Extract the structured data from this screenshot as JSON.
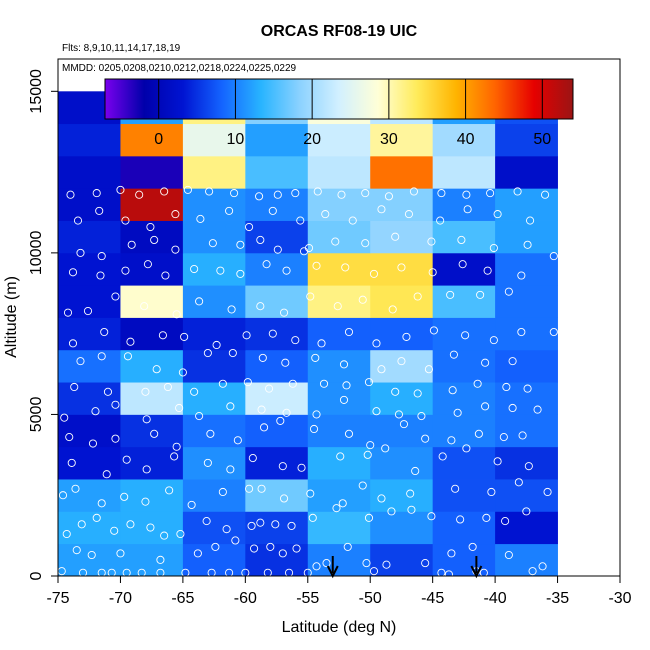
{
  "chart_data": {
    "type": "heatmap",
    "title": "ORCAS RF08-19 UIC",
    "subtitle_flights": "Flts: 8,9,10,11,14,17,18,19",
    "subtitle_dates": "MMDD: 0205,0208,0210,0212,0218,0224,0225,0229",
    "xlabel": "Latitude (deg N)",
    "ylabel": "Altitude (m)",
    "xlim": [
      -75,
      -30
    ],
    "ylim": [
      0,
      16000
    ],
    "x_ticks": [
      -75,
      -70,
      -65,
      -60,
      -55,
      -50,
      -45,
      -40,
      -35,
      -30
    ],
    "y_ticks": [
      0,
      5000,
      10000,
      15000
    ],
    "colorbar": {
      "range": [
        -7,
        54
      ],
      "ticks": [
        0,
        10,
        20,
        30,
        40,
        50
      ],
      "stops": [
        "#7a00ee",
        "#0000aa",
        "#0014d2",
        "#1464ff",
        "#28b4ff",
        "#8cd2ff",
        "#d2f0ff",
        "#ffffd7",
        "#ffeb5a",
        "#ffb400",
        "#ff6400",
        "#e60000",
        "#9b1414"
      ]
    },
    "x_bins": [
      -75,
      -70,
      -65,
      -60,
      -55,
      -50,
      -45,
      -40,
      -35
    ],
    "y_bin_size": 1000,
    "grid_values": [
      [
        12,
        12,
        8,
        5,
        10,
        6,
        8,
        10
      ],
      [
        13,
        13,
        7,
        6,
        14,
        11,
        8,
        3
      ],
      [
        12,
        13,
        10,
        17,
        12,
        13,
        7,
        7
      ],
      [
        3,
        4,
        11,
        4,
        13,
        11,
        7,
        5
      ],
      [
        2,
        5,
        9,
        8,
        10,
        10,
        10,
        9
      ],
      [
        5,
        22,
        13,
        23,
        11,
        13,
        10,
        9
      ],
      [
        9,
        13,
        5,
        8,
        11,
        20,
        9,
        8
      ],
      [
        4,
        1,
        4,
        5,
        8,
        8,
        9,
        9
      ],
      [
        3,
        29,
        11,
        17,
        32,
        34,
        15,
        9
      ],
      [
        3,
        2,
        13,
        10,
        35,
        35,
        2,
        9
      ],
      [
        4,
        1,
        11,
        6,
        17,
        19,
        15,
        12
      ],
      [
        2,
        52,
        11,
        10,
        18,
        18,
        10,
        12
      ],
      [
        2,
        -3,
        32,
        15,
        22,
        43,
        22,
        2
      ],
      [
        4,
        42,
        26,
        12,
        23,
        31,
        20,
        6
      ],
      [
        2,
        12,
        32,
        18,
        28,
        22,
        12,
        7
      ]
    ],
    "points": [
      [
        -74.7,
        150
      ],
      [
        -73.0,
        100
      ],
      [
        -71.5,
        100
      ],
      [
        -70.7,
        100
      ],
      [
        -69.5,
        100
      ],
      [
        -68.3,
        100
      ],
      [
        -66.8,
        100
      ],
      [
        -64.8,
        100
      ],
      [
        -62.7,
        100
      ],
      [
        -61.3,
        100
      ],
      [
        -60.0,
        100
      ],
      [
        -58.2,
        100
      ],
      [
        -56.5,
        100
      ],
      [
        -55.0,
        100
      ],
      [
        -54.3,
        300
      ],
      [
        -49.7,
        150
      ],
      [
        -44.3,
        100
      ],
      [
        -43.7,
        50
      ],
      [
        -41.5,
        150
      ],
      [
        -40.9,
        100
      ],
      [
        -37.0,
        150
      ],
      [
        -36.2,
        300
      ],
      [
        -73.5,
        800
      ],
      [
        -72.3,
        650
      ],
      [
        -70.0,
        700
      ],
      [
        -66.8,
        500
      ],
      [
        -63.8,
        700
      ],
      [
        -62.4,
        900
      ],
      [
        -60.8,
        1100
      ],
      [
        -59.3,
        850
      ],
      [
        -58.0,
        900
      ],
      [
        -57.0,
        700
      ],
      [
        -55.9,
        850
      ],
      [
        -53.5,
        400
      ],
      [
        -51.8,
        900
      ],
      [
        -50.3,
        400
      ],
      [
        -48.7,
        350
      ],
      [
        -45.6,
        400
      ],
      [
        -43.5,
        700
      ],
      [
        -41.8,
        900
      ],
      [
        -38.9,
        650
      ],
      [
        -74.3,
        1300
      ],
      [
        -73.1,
        1600
      ],
      [
        -71.9,
        1800
      ],
      [
        -70.5,
        1400
      ],
      [
        -69.2,
        1600
      ],
      [
        -67.6,
        1500
      ],
      [
        -66.5,
        1250
      ],
      [
        -65.2,
        1300
      ],
      [
        -63.1,
        1700
      ],
      [
        -61.5,
        1450
      ],
      [
        -59.5,
        1550
      ],
      [
        -58.8,
        1650
      ],
      [
        -57.6,
        1600
      ],
      [
        -56.3,
        1550
      ],
      [
        -54.6,
        1800
      ],
      [
        -52.7,
        2100
      ],
      [
        -50.1,
        1800
      ],
      [
        -48.3,
        2000
      ],
      [
        -46.7,
        2050
      ],
      [
        -45.1,
        1850
      ],
      [
        -42.8,
        1750
      ],
      [
        -40.7,
        1800
      ],
      [
        -39.2,
        1700
      ],
      [
        -37.5,
        2000
      ],
      [
        -74.6,
        2500
      ],
      [
        -73.6,
        2700
      ],
      [
        -71.5,
        2250
      ],
      [
        -69.7,
        2450
      ],
      [
        -68.0,
        2300
      ],
      [
        -66.1,
        2650
      ],
      [
        -64.3,
        2200
      ],
      [
        -61.8,
        2600
      ],
      [
        -59.7,
        2700
      ],
      [
        -58.7,
        2700
      ],
      [
        -56.9,
        2400
      ],
      [
        -54.8,
        2550
      ],
      [
        -52.2,
        2250
      ],
      [
        -50.6,
        2800
      ],
      [
        -49.1,
        2400
      ],
      [
        -46.8,
        2550
      ],
      [
        -43.2,
        2700
      ],
      [
        -40.3,
        2600
      ],
      [
        -38.1,
        2900
      ],
      [
        -35.8,
        2600
      ],
      [
        -73.9,
        3500
      ],
      [
        -71.1,
        3150
      ],
      [
        -69.5,
        3600
      ],
      [
        -67.9,
        3300
      ],
      [
        -65.7,
        3700
      ],
      [
        -63.0,
        3500
      ],
      [
        -61.2,
        3300
      ],
      [
        -59.4,
        3650
      ],
      [
        -57.0,
        3400
      ],
      [
        -55.5,
        3350
      ],
      [
        -52.4,
        3700
      ],
      [
        -50.2,
        3750
      ],
      [
        -48.8,
        3950
      ],
      [
        -46.4,
        3250
      ],
      [
        -44.2,
        3700
      ],
      [
        -42.3,
        3950
      ],
      [
        -39.8,
        3550
      ],
      [
        -37.3,
        3400
      ],
      [
        -74.1,
        4300
      ],
      [
        -72.2,
        4100
      ],
      [
        -70.4,
        4250
      ],
      [
        -67.3,
        4400
      ],
      [
        -65.5,
        4000
      ],
      [
        -62.8,
        4400
      ],
      [
        -60.6,
        4200
      ],
      [
        -58.5,
        4600
      ],
      [
        -57.2,
        4800
      ],
      [
        -54.5,
        4550
      ],
      [
        -51.7,
        4400
      ],
      [
        -50.0,
        4050
      ],
      [
        -47.3,
        4700
      ],
      [
        -45.6,
        4250
      ],
      [
        -43.5,
        4200
      ],
      [
        -41.3,
        4400
      ],
      [
        -39.3,
        4300
      ],
      [
        -37.8,
        4350
      ],
      [
        -74.5,
        4900
      ],
      [
        -72.0,
        5100
      ],
      [
        -70.4,
        5300
      ],
      [
        -67.9,
        4850
      ],
      [
        -65.3,
        5200
      ],
      [
        -63.7,
        4950
      ],
      [
        -61.2,
        5250
      ],
      [
        -58.7,
        5150
      ],
      [
        -56.7,
        5050
      ],
      [
        -54.3,
        5000
      ],
      [
        -52.1,
        5450
      ],
      [
        -49.5,
        5100
      ],
      [
        -47.7,
        5000
      ],
      [
        -45.9,
        4950
      ],
      [
        -43.0,
        5050
      ],
      [
        -40.8,
        5250
      ],
      [
        -38.6,
        5200
      ],
      [
        -36.6,
        5150
      ],
      [
        -73.7,
        5850
      ],
      [
        -71.0,
        5700
      ],
      [
        -68.0,
        5700
      ],
      [
        -66.2,
        5850
      ],
      [
        -64.1,
        5700
      ],
      [
        -61.8,
        5950
      ],
      [
        -59.8,
        6000
      ],
      [
        -58.1,
        5800
      ],
      [
        -56.2,
        5950
      ],
      [
        -53.7,
        5950
      ],
      [
        -51.9,
        5900
      ],
      [
        -50.1,
        6000
      ],
      [
        -48.0,
        5700
      ],
      [
        -46.2,
        5650
      ],
      [
        -43.4,
        5750
      ],
      [
        -41.4,
        5950
      ],
      [
        -39.1,
        5850
      ],
      [
        -37.4,
        5800
      ],
      [
        -73.2,
        6650
      ],
      [
        -71.5,
        6800
      ],
      [
        -69.4,
        6800
      ],
      [
        -67.1,
        6400
      ],
      [
        -65.0,
        6300
      ],
      [
        -63.0,
        6900
      ],
      [
        -61.0,
        6900
      ],
      [
        -58.6,
        6750
      ],
      [
        -56.8,
        6600
      ],
      [
        -54.4,
        6750
      ],
      [
        -52.1,
        6550
      ],
      [
        -49.1,
        6400
      ],
      [
        -47.5,
        6650
      ],
      [
        -45.3,
        6400
      ],
      [
        -43.3,
        6850
      ],
      [
        -40.8,
        6600
      ],
      [
        -38.6,
        6650
      ],
      [
        -73.8,
        7200
      ],
      [
        -71.3,
        7550
      ],
      [
        -69.2,
        7250
      ],
      [
        -66.6,
        7450
      ],
      [
        -64.9,
        7400
      ],
      [
        -62.3,
        7150
      ],
      [
        -59.9,
        7450
      ],
      [
        -57.8,
        7500
      ],
      [
        -56.0,
        7300
      ],
      [
        -53.9,
        7200
      ],
      [
        -51.7,
        7550
      ],
      [
        -49.5,
        7200
      ],
      [
        -47.1,
        7400
      ],
      [
        -44.9,
        7600
      ],
      [
        -42.4,
        7450
      ],
      [
        -40.1,
        7300
      ],
      [
        -37.9,
        7550
      ],
      [
        -35.3,
        7550
      ],
      [
        -74.2,
        8150
      ],
      [
        -72.6,
        8200
      ],
      [
        -70.4,
        8650
      ],
      [
        -68.1,
        8350
      ],
      [
        -65.5,
        8100
      ],
      [
        -63.7,
        8500
      ],
      [
        -61.1,
        8250
      ],
      [
        -58.8,
        8350
      ],
      [
        -56.9,
        8150
      ],
      [
        -54.8,
        8650
      ],
      [
        -52.6,
        8350
      ],
      [
        -50.6,
        8550
      ],
      [
        -48.2,
        8250
      ],
      [
        -46.2,
        8650
      ],
      [
        -43.6,
        8700
      ],
      [
        -41.2,
        8700
      ],
      [
        -38.9,
        8800
      ],
      [
        -73.8,
        9400
      ],
      [
        -71.6,
        9300
      ],
      [
        -69.6,
        9450
      ],
      [
        -67.8,
        9650
      ],
      [
        -66.4,
        9300
      ],
      [
        -64.1,
        9500
      ],
      [
        -62.0,
        9450
      ],
      [
        -60.4,
        9350
      ],
      [
        -58.3,
        9650
      ],
      [
        -56.7,
        9450
      ],
      [
        -54.3,
        9600
      ],
      [
        -52.0,
        9550
      ],
      [
        -49.7,
        9350
      ],
      [
        -47.5,
        9550
      ],
      [
        -45.0,
        9400
      ],
      [
        -42.6,
        9650
      ],
      [
        -40.6,
        9450
      ],
      [
        -37.9,
        9300
      ],
      [
        -35.3,
        9900
      ],
      [
        -73.2,
        10000
      ],
      [
        -71.5,
        9900
      ],
      [
        -69.1,
        10250
      ],
      [
        -67.3,
        10400
      ],
      [
        -65.6,
        10100
      ],
      [
        -62.6,
        10300
      ],
      [
        -60.4,
        10250
      ],
      [
        -58.8,
        10400
      ],
      [
        -57.4,
        10100
      ],
      [
        -55.3,
        10050
      ],
      [
        -54.9,
        10150
      ],
      [
        -52.8,
        10350
      ],
      [
        -50.4,
        10300
      ],
      [
        -48.0,
        10500
      ],
      [
        -45.1,
        10350
      ],
      [
        -42.7,
        10400
      ],
      [
        -40.1,
        10150
      ],
      [
        -37.4,
        10250
      ],
      [
        -73.4,
        11000
      ],
      [
        -71.7,
        11300
      ],
      [
        -69.6,
        11000
      ],
      [
        -67.6,
        10800
      ],
      [
        -65.6,
        11200
      ],
      [
        -63.6,
        11050
      ],
      [
        -61.3,
        11300
      ],
      [
        -59.7,
        10800
      ],
      [
        -57.8,
        11300
      ],
      [
        -55.6,
        11000
      ],
      [
        -53.6,
        11200
      ],
      [
        -51.4,
        11000
      ],
      [
        -49.1,
        11350
      ],
      [
        -46.9,
        11200
      ],
      [
        -44.4,
        11000
      ],
      [
        -42.2,
        11350
      ],
      [
        -39.8,
        11200
      ],
      [
        -37.2,
        11000
      ],
      [
        -74.0,
        11800
      ],
      [
        -71.9,
        11850
      ],
      [
        -70.0,
        11950
      ],
      [
        -68.5,
        11800
      ],
      [
        -66.5,
        11900
      ],
      [
        -64.6,
        11950
      ],
      [
        -62.9,
        11900
      ],
      [
        -60.9,
        11850
      ],
      [
        -58.9,
        11750
      ],
      [
        -57.4,
        11800
      ],
      [
        -56.0,
        11850
      ],
      [
        -54.2,
        11900
      ],
      [
        -52.3,
        11800
      ],
      [
        -50.4,
        11850
      ],
      [
        -48.5,
        11750
      ],
      [
        -46.5,
        11900
      ],
      [
        -44.3,
        11850
      ],
      [
        -42.3,
        11800
      ],
      [
        -40.4,
        11850
      ],
      [
        -38.2,
        11900
      ],
      [
        -36.0,
        11800
      ]
    ],
    "arrows": [
      {
        "x": -53
      },
      {
        "x": -41.5
      }
    ]
  }
}
